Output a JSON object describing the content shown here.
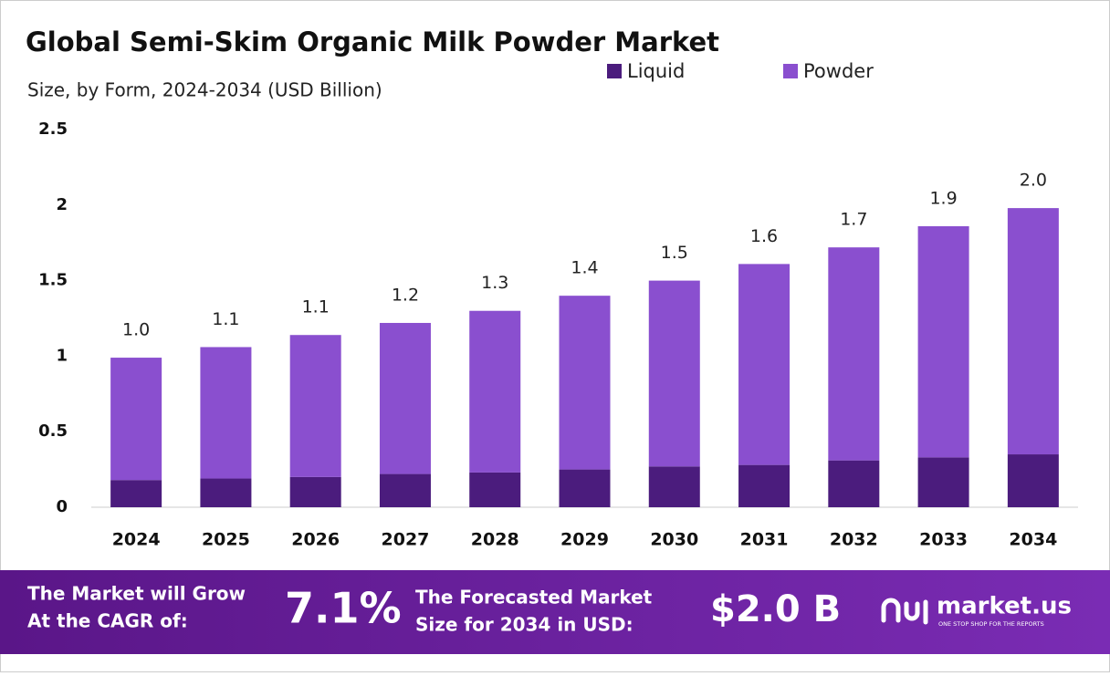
{
  "chart_data": {
    "type": "stacked_bar",
    "title": "Global Semi-Skim Organic Milk Powder Market",
    "subtitle": "Size, by Form, 2024-2034 (USD Billion)",
    "categories": [
      "2024",
      "2025",
      "2026",
      "2027",
      "2028",
      "2029",
      "2030",
      "2031",
      "2032",
      "2033",
      "2034"
    ],
    "series": [
      {
        "name": "Liquid",
        "color": "#4b1c7d",
        "values": [
          0.18,
          0.19,
          0.2,
          0.22,
          0.23,
          0.25,
          0.27,
          0.28,
          0.31,
          0.33,
          0.35
        ]
      },
      {
        "name": "Powder",
        "color": "#8a4fcf",
        "values": [
          0.81,
          0.87,
          0.94,
          1.0,
          1.07,
          1.15,
          1.23,
          1.33,
          1.41,
          1.53,
          1.63
        ]
      }
    ],
    "totals": [
      0.99,
      1.06,
      1.14,
      1.22,
      1.3,
      1.4,
      1.5,
      1.61,
      1.72,
      1.86,
      1.98
    ],
    "total_labels": [
      "1.0",
      "1.1",
      "1.1",
      "1.2",
      "1.3",
      "1.4",
      "1.5",
      "1.6",
      "1.7",
      "1.9",
      "2.0"
    ],
    "ylim": [
      0,
      2.5
    ],
    "yticks": [
      0,
      0.5,
      1,
      1.5,
      2,
      2.5
    ],
    "grid": false,
    "legend": "top"
  },
  "footer": {
    "cagr_text": [
      "The Market will Grow",
      "At the CAGR of:"
    ],
    "cagr_value": "7.1%",
    "forecast_text": [
      "The Forecasted Market",
      "Size for 2034 in USD:"
    ],
    "forecast_value": "$2.0 B",
    "brand": "market.us",
    "tagline": "ONE STOP SHOP FOR THE REPORTS"
  }
}
